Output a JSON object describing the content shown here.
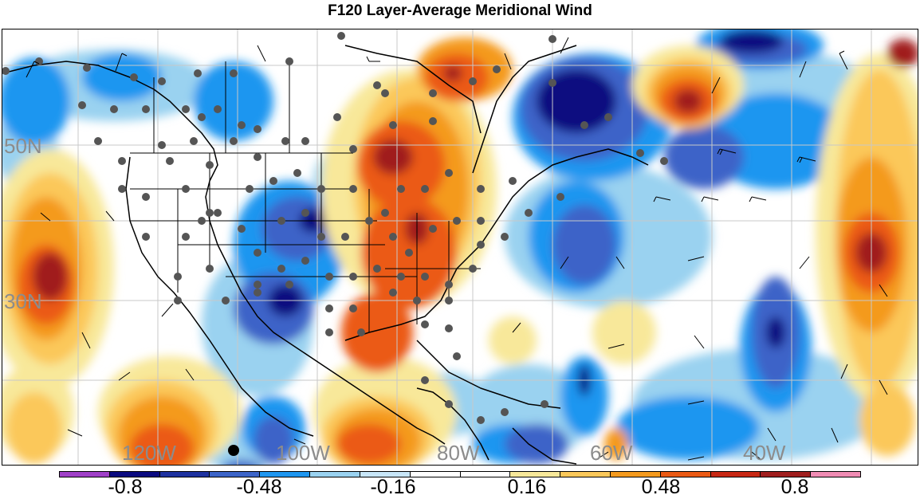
{
  "title": "F120 Layer-Average Meridional Wind",
  "latitude_labels": [
    "50N",
    "30N"
  ],
  "longitude_labels": [
    "120W",
    "100W",
    "80W",
    "60W",
    "40W"
  ],
  "colorbar": {
    "colors": [
      "#a040c8",
      "#0a0a80",
      "#1e32a0",
      "#3c64c8",
      "#1e96f0",
      "#9ad2f0",
      "#c8e6f8",
      "#ffffff",
      "#ffffff",
      "#f8e89a",
      "#fbc85a",
      "#f49a1e",
      "#eb5a14",
      "#c82814",
      "#a01e1e",
      "#f08cb4"
    ],
    "labels": [
      "-0.8",
      "-0.48",
      "-0.16",
      "0.16",
      "0.48",
      "0.8"
    ]
  },
  "map_colors": {
    "strong_negative": "#0a0a80",
    "negative": "#3c64c8",
    "weak_negative": "#1e96f0",
    "slight_negative": "#9ad2f0",
    "slight_positive": "#f8e89a",
    "weak_positive": "#fbc85a",
    "positive": "#f49a1e",
    "strong_positive": "#eb5a14",
    "very_strong_positive": "#a01e1e",
    "extreme_positive": "#f08cb4",
    "station_dot": "#555555",
    "boundary_line": "#000000",
    "grid_line": "#c8c8c8"
  }
}
